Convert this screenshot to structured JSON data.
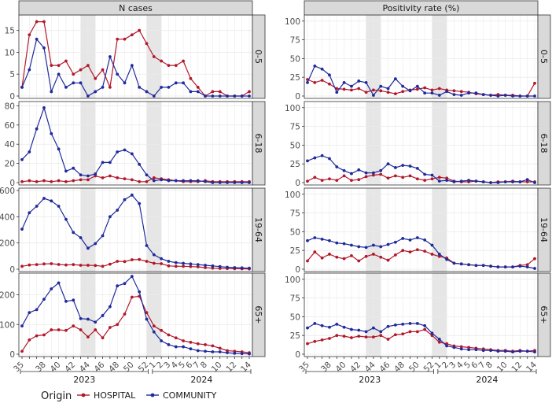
{
  "chart_data": {
    "type": "line",
    "x_categories": [
      "35",
      "36",
      "37",
      "38",
      "39",
      "40",
      "41",
      "42",
      "43",
      "44",
      "45",
      "46",
      "47",
      "48",
      "49",
      "50",
      "51",
      "52",
      "1",
      "2",
      "3",
      "4",
      "5",
      "6",
      "7",
      "8",
      "9",
      "10",
      "11",
      "12",
      "13",
      "14"
    ],
    "x_tick_labels": [
      "35",
      "38",
      "40",
      "42",
      "44",
      "46",
      "48",
      "50",
      "52",
      "1",
      "2",
      "3",
      "4",
      "5",
      "6",
      "7",
      "8",
      "10",
      "12",
      "14"
    ],
    "years": [
      "2023",
      "2024"
    ],
    "shaded_periods": [
      [
        "43",
        "45"
      ],
      [
        "52",
        "2"
      ]
    ],
    "columns": [
      "N cases",
      "Positivity rate (%)"
    ],
    "rows": [
      "0-5",
      "6-18",
      "19-64",
      "65+"
    ],
    "legend": {
      "title": "Origin",
      "items": [
        "HOSPITAL",
        "COMMUNITY"
      ]
    },
    "colors": {
      "HOSPITAL": "#b2182b",
      "COMMUNITY": "#1f2a9c",
      "panel_bg": "#ffffff",
      "strip_bg": "#d9d9d9",
      "grid": "#ebebeb",
      "shade": "#e6e6e6"
    },
    "panels": [
      {
        "column": "N cases",
        "row": "0-5",
        "ylim": [
          0,
          18
        ],
        "yticks": [
          0,
          5,
          10,
          15
        ],
        "series": [
          {
            "name": "HOSPITAL",
            "values": [
              2,
              14,
              17,
              17,
              7,
              7,
              8,
              5,
              6,
              7,
              4,
              6,
              2,
              13,
              13,
              14,
              15,
              12,
              9,
              8,
              7,
              7,
              8,
              4,
              2,
              0,
              1,
              1,
              0,
              0,
              0,
              1
            ]
          },
          {
            "name": "COMMUNITY",
            "values": [
              2,
              6,
              13,
              11,
              1,
              5,
              2,
              3,
              3,
              0,
              1,
              2,
              9,
              5,
              3,
              7,
              2,
              1,
              0,
              2,
              2,
              3,
              3,
              1,
              1,
              0,
              0,
              0,
              0,
              0,
              0,
              0
            ]
          }
        ]
      },
      {
        "column": "Positivity rate (%)",
        "row": "0-5",
        "ylim": [
          0,
          105
        ],
        "yticks": [
          0,
          25,
          50,
          75,
          100
        ],
        "series": [
          {
            "name": "HOSPITAL",
            "values": [
              22,
              18,
              21,
              16,
              10,
              9,
              8,
              10,
              5,
              8,
              7,
              5,
              3,
              6,
              8,
              9,
              11,
              8,
              10,
              8,
              7,
              6,
              5,
              3,
              2,
              1,
              2,
              1,
              1,
              0,
              0,
              17
            ]
          },
          {
            "name": "COMMUNITY",
            "values": [
              18,
              40,
              36,
              28,
              5,
              18,
              13,
              20,
              18,
              1,
              13,
              10,
              23,
              13,
              7,
              13,
              4,
              4,
              1,
              6,
              2,
              1,
              4,
              4,
              2,
              1,
              0,
              1,
              0,
              0,
              0,
              0
            ]
          }
        ]
      },
      {
        "column": "N cases",
        "row": "6-18",
        "ylim": [
          0,
          82
        ],
        "yticks": [
          0,
          20,
          40,
          60,
          80
        ],
        "series": [
          {
            "name": "HOSPITAL",
            "values": [
              1,
              2,
              1,
              2,
              1,
              2,
              1,
              2,
              3,
              3,
              7,
              5,
              7,
              5,
              4,
              3,
              1,
              1,
              5,
              4,
              3,
              2,
              1,
              1,
              1,
              2,
              1,
              1,
              1,
              1,
              1,
              1
            ]
          },
          {
            "name": "COMMUNITY",
            "values": [
              24,
              32,
              56,
              78,
              51,
              35,
              12,
              15,
              8,
              7,
              9,
              21,
              21,
              32,
              34,
              30,
              19,
              8,
              2,
              3,
              2,
              2,
              2,
              2,
              2,
              1,
              0,
              0,
              0,
              0,
              0,
              0
            ]
          }
        ]
      },
      {
        "column": "Positivity rate (%)",
        "row": "6-18",
        "ylim": [
          0,
          105
        ],
        "yticks": [
          0,
          25,
          50,
          75,
          100
        ],
        "series": [
          {
            "name": "HOSPITAL",
            "values": [
              2,
              7,
              3,
              5,
              3,
              9,
              3,
              4,
              8,
              10,
              11,
              6,
              9,
              7,
              9,
              5,
              3,
              5,
              7,
              6,
              2,
              1,
              1,
              2,
              1,
              0,
              1,
              1,
              2,
              1,
              1,
              1
            ]
          },
          {
            "name": "COMMUNITY",
            "values": [
              29,
              33,
              36,
              32,
              21,
              16,
              12,
              17,
              13,
              13,
              16,
              25,
              20,
              23,
              22,
              19,
              11,
              10,
              2,
              3,
              1,
              2,
              3,
              2,
              1,
              0,
              0,
              1,
              1,
              1,
              4,
              0
            ]
          }
        ]
      },
      {
        "column": "N cases",
        "row": "19-64",
        "ylim": [
          0,
          600
        ],
        "yticks": [
          0,
          200,
          400,
          600
        ],
        "series": [
          {
            "name": "HOSPITAL",
            "values": [
              22,
              32,
              35,
              40,
              42,
              36,
              32,
              35,
              30,
              30,
              28,
              22,
              38,
              60,
              58,
              72,
              74,
              60,
              45,
              42,
              25,
              22,
              22,
              20,
              18,
              12,
              8,
              6,
              5,
              4,
              3,
              2
            ]
          },
          {
            "name": "COMMUNITY",
            "values": [
              305,
              430,
              480,
              540,
              520,
              480,
              380,
              280,
              240,
              160,
              195,
              255,
              400,
              450,
              530,
              565,
              500,
              180,
              110,
              80,
              60,
              50,
              45,
              40,
              35,
              30,
              25,
              20,
              15,
              12,
              10,
              8
            ]
          }
        ]
      },
      {
        "column": "Positivity rate (%)",
        "row": "19-64",
        "ylim": [
          0,
          105
        ],
        "yticks": [
          0,
          25,
          50,
          75,
          100
        ],
        "series": [
          {
            "name": "HOSPITAL",
            "values": [
              11,
              23,
              15,
              20,
              16,
              14,
              18,
              11,
              17,
              20,
              16,
              12,
              19,
              25,
              23,
              26,
              24,
              20,
              17,
              15,
              8,
              7,
              6,
              5,
              5,
              4,
              3,
              3,
              3,
              5,
              6,
              14
            ]
          },
          {
            "name": "COMMUNITY",
            "values": [
              38,
              42,
              40,
              38,
              35,
              34,
              32,
              30,
              29,
              32,
              30,
              33,
              36,
              41,
              39,
              42,
              39,
              32,
              20,
              13,
              8,
              7,
              6,
              5,
              5,
              4,
              3,
              3,
              3,
              4,
              3,
              1
            ]
          }
        ]
      },
      {
        "column": "N cases",
        "row": "65+",
        "ylim": [
          0,
          265
        ],
        "yticks": [
          0,
          100,
          200
        ],
        "series": [
          {
            "name": "HOSPITAL",
            "values": [
              10,
              48,
              62,
              65,
              82,
              82,
              80,
              95,
              82,
              58,
              82,
              55,
              90,
              100,
              135,
              192,
              195,
              140,
              95,
              80,
              65,
              55,
              45,
              40,
              35,
              32,
              28,
              20,
              12,
              10,
              8,
              5
            ]
          },
          {
            "name": "COMMUNITY",
            "values": [
              95,
              140,
              150,
              185,
              220,
              240,
              178,
              182,
              120,
              118,
              108,
              130,
              160,
              230,
              238,
              262,
              210,
              118,
              75,
              45,
              32,
              25,
              25,
              18,
              12,
              10,
              8,
              8,
              5,
              3,
              2,
              1
            ]
          }
        ]
      },
      {
        "column": "Positivity rate (%)",
        "row": "65+",
        "ylim": [
          0,
          105
        ],
        "yticks": [
          0,
          25,
          50,
          75,
          100
        ],
        "series": [
          {
            "name": "HOSPITAL",
            "values": [
              14,
              17,
              19,
              21,
              25,
              24,
              22,
              24,
              23,
              23,
              25,
              20,
              26,
              27,
              30,
              30,
              33,
              25,
              16,
              14,
              11,
              10,
              9,
              8,
              7,
              6,
              5,
              5,
              4,
              5,
              4,
              5
            ]
          },
          {
            "name": "COMMUNITY",
            "values": [
              35,
              41,
              38,
              36,
              40,
              36,
              33,
              32,
              30,
              35,
              30,
              37,
              39,
              40,
              41,
              41,
              38,
              28,
              20,
              11,
              9,
              7,
              6,
              6,
              5,
              5,
              4,
              4,
              3,
              4,
              4,
              3
            ]
          }
        ]
      }
    ]
  }
}
